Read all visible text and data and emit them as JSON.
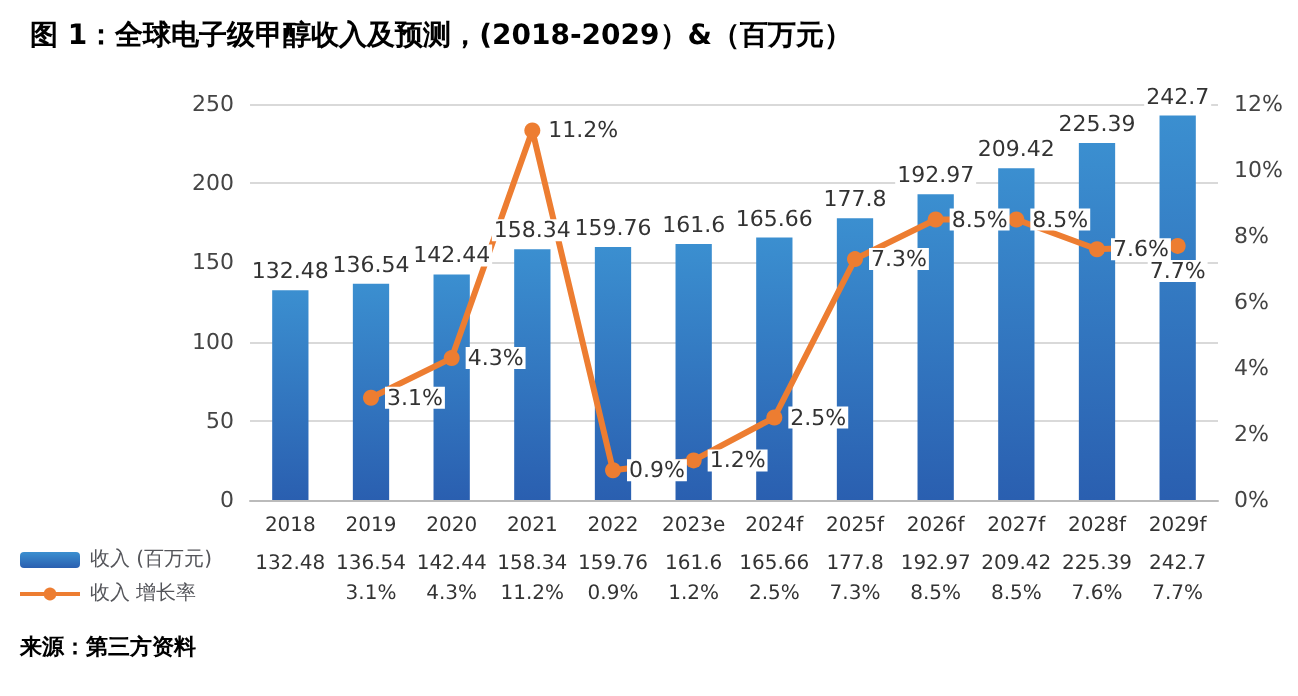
{
  "chart_data": {
    "type": "bar",
    "title": "图 1：全球电子级甲醇收入及预测，(2018-2029）&（百万元）",
    "categories": [
      "2018",
      "2019",
      "2020",
      "2021",
      "2022",
      "2023e",
      "2024f",
      "2025f",
      "2026f",
      "2027f",
      "2028f",
      "2029f"
    ],
    "series": [
      {
        "name": "收入 (百万元)",
        "color": "#3b8fd0",
        "values": [
          132.48,
          136.54,
          142.44,
          158.34,
          159.76,
          161.6,
          165.66,
          177.8,
          192.97,
          209.42,
          225.39,
          242.7
        ],
        "value_labels": [
          "132.48",
          "136.54",
          "142.44",
          "158.34",
          "159.76",
          "161.6",
          "165.66",
          "177.8",
          "192.97",
          "209.42",
          "225.39",
          "242.7"
        ]
      },
      {
        "name": "收入 增长率",
        "type": "line",
        "axis": "y2",
        "color": "#ed7d31",
        "values": [
          null,
          3.1,
          4.3,
          11.2,
          0.9,
          1.2,
          2.5,
          7.3,
          8.5,
          8.5,
          7.6,
          7.7
        ],
        "value_labels": [
          null,
          "3.1%",
          "4.3%",
          "11.2%",
          "0.9%",
          "1.2%",
          "2.5%",
          "7.3%",
          "8.5%",
          "8.5%",
          "7.6%",
          "7.7%"
        ]
      }
    ],
    "ylim": [
      0,
      250
    ],
    "yticks": [
      0,
      50,
      100,
      150,
      200,
      250
    ],
    "y2lim": [
      0,
      12
    ],
    "y2ticks": [
      {
        "value": 0,
        "label": "0%"
      },
      {
        "value": 2,
        "label": "2%"
      },
      {
        "value": 4,
        "label": "4%"
      },
      {
        "value": 6,
        "label": "6%"
      },
      {
        "value": 8,
        "label": "8%"
      },
      {
        "value": 10,
        "label": "10%"
      },
      {
        "value": 12,
        "label": "12%"
      }
    ],
    "grid": "y",
    "legend": "bottom left",
    "marker": "circle",
    "line_style": "solid",
    "annotations": [
      "来源：第三方资料"
    ]
  }
}
